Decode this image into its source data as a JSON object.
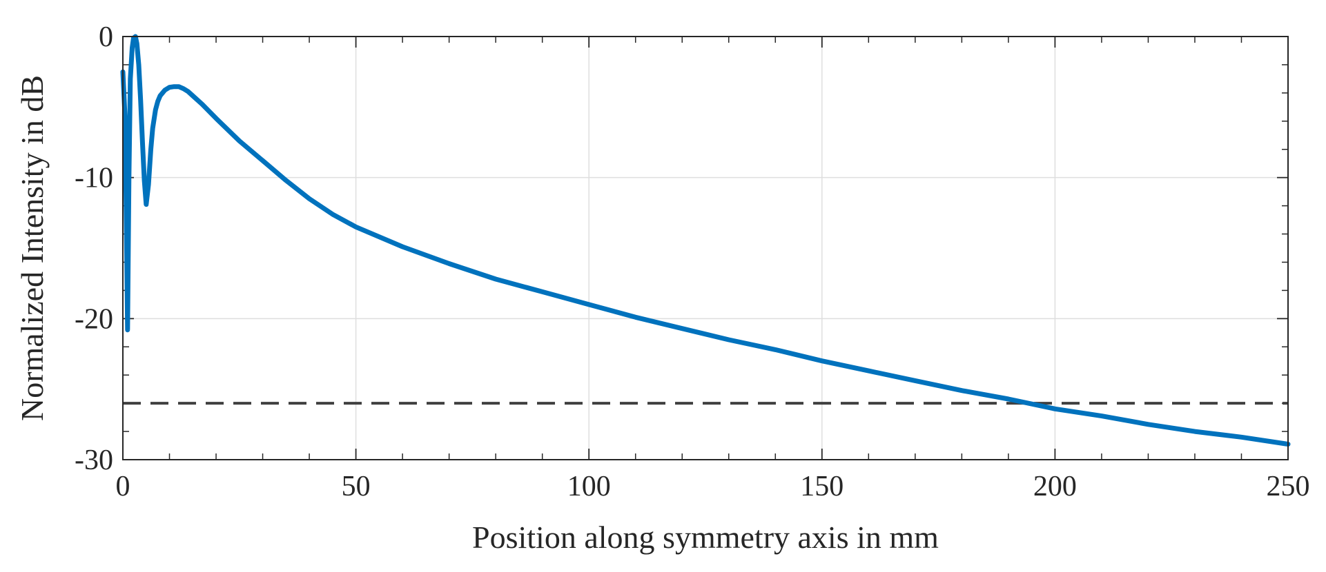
{
  "chart_data": {
    "type": "line",
    "title": "",
    "xlabel": "Position along symmetry axis in mm",
    "ylabel": "Normalized Intensity in dB",
    "xlim": [
      0,
      250
    ],
    "ylim": [
      -30,
      0
    ],
    "xticks": [
      0,
      50,
      100,
      150,
      200,
      250
    ],
    "xtick_labels": [
      "0",
      "50",
      "100",
      "150",
      "200",
      "250"
    ],
    "yticks": [
      0,
      -10,
      -20,
      -30
    ],
    "ytick_labels": [
      "0",
      "-10",
      "-20",
      "-30"
    ],
    "x_minor_step": 10,
    "y_minor_step": 2,
    "grid": true,
    "legend": "none",
    "colors": {
      "series": "#0072bd",
      "threshold": "#404040",
      "grid": "#dedede",
      "axis": "#262626"
    },
    "series": [
      {
        "x": [
          0,
          0.5,
          1.0,
          1.3,
          1.6,
          2.0,
          2.3,
          2.7,
          3.0,
          3.4,
          3.8,
          4.2,
          4.6,
          5.0,
          5.5,
          6.0,
          6.4,
          7.0,
          7.5,
          8.0,
          9.0,
          10.0,
          11.0,
          12.0,
          13.0,
          14.0,
          15.0,
          17.0,
          20.0,
          25.0,
          30.0,
          35.0,
          40.0,
          45.0,
          50.0,
          60.0,
          70.0,
          80.0,
          90.0,
          100.0,
          110.0,
          120.0,
          130.0,
          140.0,
          150.0,
          160.0,
          170.0,
          180.0,
          190.0,
          200.0,
          210.0,
          220.0,
          230.0,
          240.0,
          250.0
        ],
        "y": [
          -2.5,
          -6.0,
          -20.8,
          -10.0,
          -3.0,
          -0.8,
          -0.1,
          0.0,
          -0.5,
          -2.0,
          -4.5,
          -7.5,
          -10.2,
          -11.9,
          -10.5,
          -8.0,
          -6.5,
          -5.2,
          -4.6,
          -4.2,
          -3.8,
          -3.6,
          -3.55,
          -3.55,
          -3.7,
          -3.9,
          -4.2,
          -4.8,
          -5.8,
          -7.4,
          -8.8,
          -10.2,
          -11.5,
          -12.6,
          -13.5,
          -14.9,
          -16.1,
          -17.2,
          -18.1,
          -19.0,
          -19.9,
          -20.7,
          -21.5,
          -22.2,
          -23.0,
          -23.7,
          -24.4,
          -25.1,
          -25.7,
          -26.4,
          -26.9,
          -27.5,
          -28.0,
          -28.4,
          -28.9
        ]
      }
    ],
    "reference_lines": [
      {
        "y": -26
      }
    ]
  }
}
